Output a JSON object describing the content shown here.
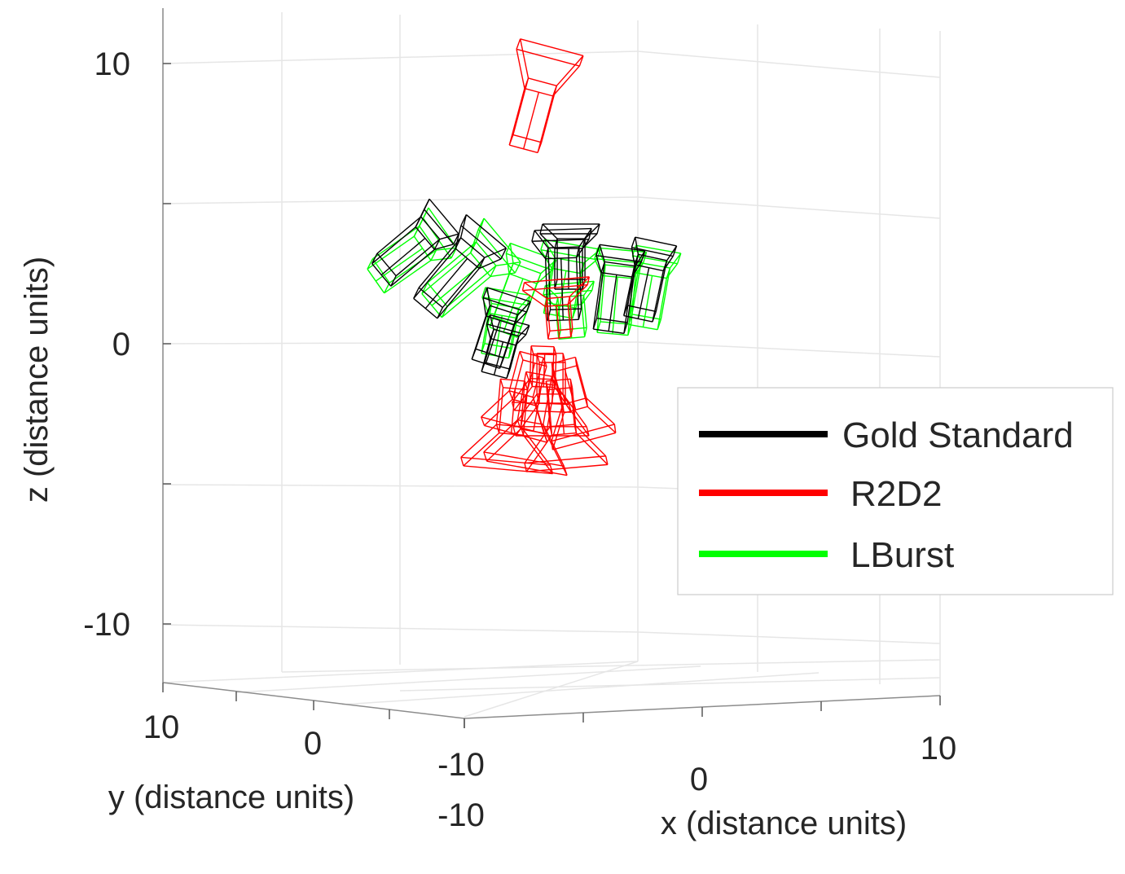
{
  "chart_data": {
    "type": "3d-wireframe",
    "xlabel": "x (distance units)",
    "ylabel": "y (distance units)",
    "zlabel": "z (distance units)",
    "xlim": [
      -10,
      10
    ],
    "ylim": [
      -10,
      10
    ],
    "zlim": [
      -12,
      12
    ],
    "x_ticks": [
      -10,
      0,
      10
    ],
    "y_ticks": [
      10,
      0,
      -10
    ],
    "z_ticks": [
      10,
      0,
      -10
    ],
    "grid": true,
    "legend_position": "right",
    "series": [
      {
        "name": "Gold Standard",
        "color": "#000000",
        "camera_count": 8
      },
      {
        "name": "R2D2",
        "color": "#ff0000",
        "camera_count": 9
      },
      {
        "name": "LBurst",
        "color": "#00ff00",
        "camera_count": 8
      }
    ]
  }
}
